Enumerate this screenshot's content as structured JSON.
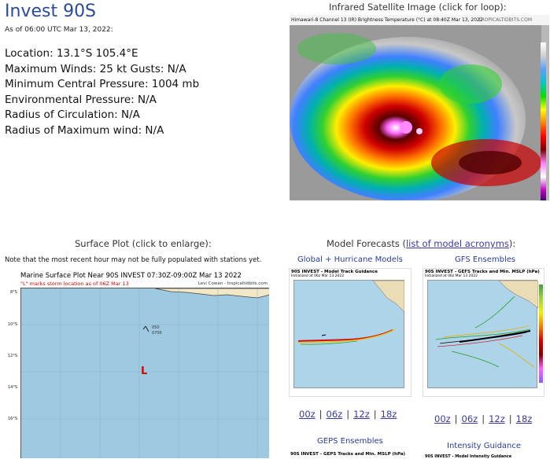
{
  "storm": {
    "title": "Invest 90S",
    "as_of": "As of 06:00 UTC Mar 13, 2022:",
    "location": "Location: 13.1°S 105.4°E",
    "max_winds": "Maximum Winds: 25 kt  Gusts: N/A",
    "min_pressure": "Minimum Central Pressure: 1004 mb",
    "env_pressure": "Environmental Pressure: N/A",
    "radius_circ": "Radius of Circulation: N/A",
    "radius_max_wind": "Radius of Maximum wind: N/A"
  },
  "satellite": {
    "header": "Infrared Satellite Image (click for loop):",
    "caption": "Himawari-8 Channel 13 (IR) Brightness Temperature (°C) at 08:40Z Mar 13, 2022",
    "credit": "TROPICALTIDBITS.COM"
  },
  "surface": {
    "header": "Surface Plot (click to enlarge):",
    "note": "Note that the most recent hour may not be fully populated with stations yet.",
    "plot_title": "Marine Surface Plot Near 90S INVEST 07:30Z-09:00Z Mar 13 2022",
    "plot_subtitle": "\"L\" marks storm location as of 06Z Mar 13",
    "credit": "Levi Cowan - tropicaltidbits.com",
    "storm_marker": "L",
    "lat_labels": [
      "8°S",
      "10°S",
      "12°S",
      "14°S",
      "16°S"
    ],
    "station_a": "050",
    "station_b": "0700"
  },
  "models": {
    "header_prefix": "Model Forecasts (",
    "header_link": "list of model acronyms",
    "header_suffix": "):",
    "global_title": "Global + Hurricane Models",
    "global_plot_title": "90S INVEST - Model Track Guidance",
    "global_plot_sub": "Initialized at 06z Mar 13 2022",
    "gfs_title": "GFS Ensembles",
    "gfs_plot_title": "90S INVEST - GEFS Tracks and Min. MSLP (hPa)",
    "gfs_plot_sub": "Initialized at 06z Mar 13 2022",
    "geps_title": "GEPS Ensembles",
    "geps_plot_title": "90S INVEST - GEPS Tracks and Min. MSLP (hPa)",
    "intensity_title": "Intensity Guidance",
    "intensity_plot_title": "90S INVEST - Model Intensity Guidance",
    "cycles": [
      "00z",
      "06z",
      "12z",
      "18z"
    ]
  }
}
